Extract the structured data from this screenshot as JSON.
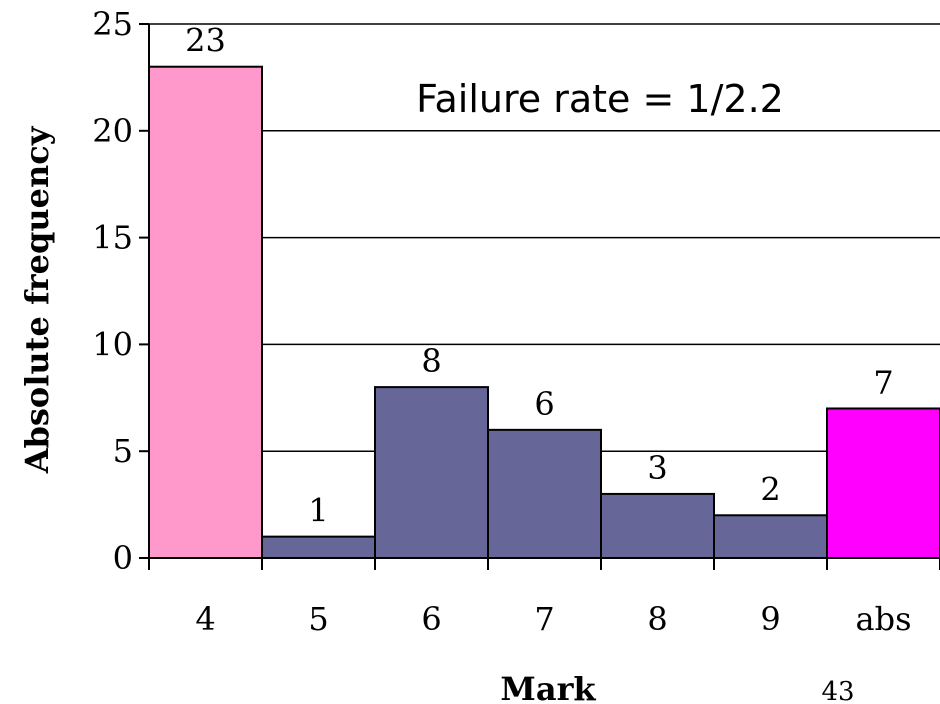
{
  "chart_data": {
    "type": "bar",
    "categories": [
      "4",
      "5",
      "6",
      "7",
      "8",
      "9",
      "abs"
    ],
    "values": [
      23,
      1,
      8,
      6,
      3,
      2,
      7
    ],
    "bar_colors": [
      "#ff99cc",
      "#666699",
      "#666699",
      "#666699",
      "#666699",
      "#666699",
      "#ff00ff"
    ],
    "bar_outline": "#000000",
    "title": "",
    "xlabel": "Mark",
    "ylabel": "Absolute frequency",
    "ylim": [
      0,
      25
    ],
    "yticks": [
      0,
      5,
      10,
      15,
      20,
      25
    ],
    "grid": true,
    "annotation": "Failure rate = 1/2.2"
  },
  "page_number": "43"
}
